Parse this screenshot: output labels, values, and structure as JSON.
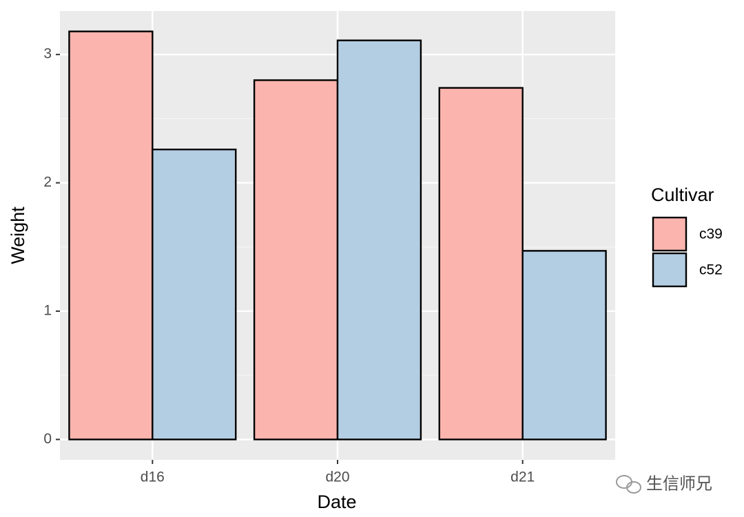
{
  "chart_data": {
    "type": "bar",
    "x_label": "Date",
    "y_label": "Weight",
    "categories": [
      "d16",
      "d20",
      "d21"
    ],
    "series": [
      {
        "name": "c39",
        "color": "#fbb4ae",
        "values": [
          3.18,
          2.8,
          2.74
        ]
      },
      {
        "name": "c52",
        "color": "#b3cde3",
        "values": [
          2.26,
          3.11,
          1.47
        ]
      }
    ],
    "ylim": [
      -0.159,
      3.339
    ],
    "yticks": [
      0,
      1,
      2,
      3
    ],
    "grid": true,
    "legend_title": "Cultivar",
    "legend_position": "right"
  },
  "watermark": "生信师兄"
}
